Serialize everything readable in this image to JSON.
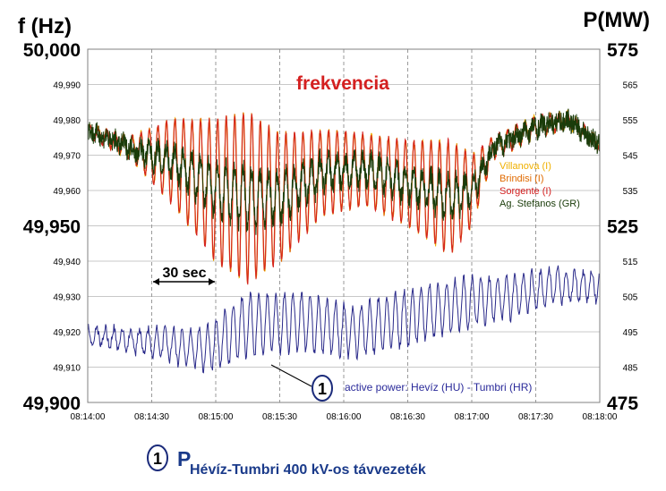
{
  "chart_data": {
    "type": "line",
    "left_axis_title": "f (Hz)",
    "right_axis_title": "P(MW)",
    "x_ticks": [
      "08:14:00",
      "08:14:30",
      "08:15:00",
      "08:15:30",
      "08:16:00",
      "08:16:30",
      "08:17:00",
      "08:17:30",
      "08:18:00"
    ],
    "x_range_seconds": [
      0,
      240
    ],
    "left_ticks": [
      {
        "value": 50.0,
        "label": "50,000",
        "big": true
      },
      {
        "value": 49.99,
        "label": "49,990",
        "big": false
      },
      {
        "value": 49.98,
        "label": "49,980",
        "big": false
      },
      {
        "value": 49.97,
        "label": "49,970",
        "big": false
      },
      {
        "value": 49.96,
        "label": "49,960",
        "big": false
      },
      {
        "value": 49.95,
        "label": "49,950",
        "big": true
      },
      {
        "value": 49.94,
        "label": "49,940",
        "big": false
      },
      {
        "value": 49.93,
        "label": "49,930",
        "big": false
      },
      {
        "value": 49.92,
        "label": "49,920",
        "big": false
      },
      {
        "value": 49.91,
        "label": "49,910",
        "big": false
      },
      {
        "value": 49.9,
        "label": "49,900",
        "big": true
      }
    ],
    "right_ticks": [
      {
        "value": 575,
        "label": "575",
        "big": true
      },
      {
        "value": 565,
        "label": "565",
        "big": false
      },
      {
        "value": 555,
        "label": "555",
        "big": false
      },
      {
        "value": 545,
        "label": "545",
        "big": false
      },
      {
        "value": 535,
        "label": "535",
        "big": false
      },
      {
        "value": 525,
        "label": "525",
        "big": true
      },
      {
        "value": 515,
        "label": "515",
        "big": false
      },
      {
        "value": 505,
        "label": "505",
        "big": false
      },
      {
        "value": 495,
        "label": "495",
        "big": false
      },
      {
        "value": 485,
        "label": "485",
        "big": false
      },
      {
        "value": 475,
        "label": "475",
        "big": true
      }
    ],
    "ylim_left": [
      49.9,
      50.0
    ],
    "ylim_right": [
      475,
      575
    ],
    "grid": true,
    "legend_position": "right",
    "series": [
      {
        "name": "Villanova (I)",
        "color": "#f0b000",
        "axis": "left"
      },
      {
        "name": "Brindisi (I)",
        "color": "#e06a00",
        "axis": "left"
      },
      {
        "name": "Sorgente (I)",
        "color": "#d42020",
        "axis": "left"
      },
      {
        "name": "Ag. Stefanos (GR)",
        "color": "#1a3c0a",
        "axis": "left"
      },
      {
        "name": "active power: Hevíz (HU) - Tumbri (HR)",
        "color": "#2a2a8a",
        "axis": "right"
      }
    ],
    "frequency_label": "frekvencia",
    "frequency_label_color": "#d42020",
    "span_annotation": {
      "label": "30 sec",
      "from": "08:14:30",
      "to": "08:15:00"
    },
    "marker_number": "1",
    "power_annotation": "active power: Hevíz (HU) - Tumbri (HR)",
    "envelope": {
      "frequency": [
        {
          "t": 0,
          "center": 49.977,
          "amp": 0.0015
        },
        {
          "t": 20,
          "center": 49.972,
          "amp": 0.003
        },
        {
          "t": 40,
          "center": 49.968,
          "amp": 0.012
        },
        {
          "t": 60,
          "center": 49.96,
          "amp": 0.02
        },
        {
          "t": 75,
          "center": 49.958,
          "amp": 0.024
        },
        {
          "t": 90,
          "center": 49.958,
          "amp": 0.018
        },
        {
          "t": 110,
          "center": 49.965,
          "amp": 0.012
        },
        {
          "t": 130,
          "center": 49.966,
          "amp": 0.01
        },
        {
          "t": 150,
          "center": 49.962,
          "amp": 0.012
        },
        {
          "t": 170,
          "center": 49.958,
          "amp": 0.016
        },
        {
          "t": 180,
          "center": 49.96,
          "amp": 0.01
        },
        {
          "t": 190,
          "center": 49.972,
          "amp": 0.003
        },
        {
          "t": 210,
          "center": 49.978,
          "amp": 0.003
        },
        {
          "t": 225,
          "center": 49.98,
          "amp": 0.002
        },
        {
          "t": 240,
          "center": 49.973,
          "amp": 0.0015
        }
      ],
      "power": [
        {
          "t": 0,
          "center": 494,
          "amp": 2
        },
        {
          "t": 30,
          "center": 492,
          "amp": 4
        },
        {
          "t": 55,
          "center": 490,
          "amp": 6
        },
        {
          "t": 75,
          "center": 497,
          "amp": 9
        },
        {
          "t": 100,
          "center": 498,
          "amp": 8
        },
        {
          "t": 125,
          "center": 495,
          "amp": 7
        },
        {
          "t": 150,
          "center": 499,
          "amp": 8
        },
        {
          "t": 175,
          "center": 503,
          "amp": 7
        },
        {
          "t": 200,
          "center": 505,
          "amp": 6
        },
        {
          "t": 220,
          "center": 508,
          "amp": 5
        },
        {
          "t": 240,
          "center": 508,
          "amp": 4
        }
      ]
    }
  },
  "footer": {
    "marker_number": "1",
    "power_symbol": "P",
    "line_name": "Hévíz-Tumbri 400 kV-os távvezeték",
    "color": "#1a3a8a"
  }
}
